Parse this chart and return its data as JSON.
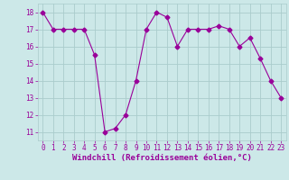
{
  "x": [
    0,
    1,
    2,
    3,
    4,
    5,
    6,
    7,
    8,
    9,
    10,
    11,
    12,
    13,
    14,
    15,
    16,
    17,
    18,
    19,
    20,
    21,
    22,
    23
  ],
  "y": [
    18,
    17,
    17,
    17,
    17,
    15.5,
    11,
    11.2,
    12,
    14,
    17,
    18,
    17.7,
    16,
    17,
    17,
    17,
    17.2,
    17,
    16,
    16.5,
    15.3,
    14,
    13
  ],
  "line_color": "#990099",
  "marker": "D",
  "marker_size": 2.5,
  "bg_color": "#cce8e8",
  "grid_color": "#aacccc",
  "xlabel": "Windchill (Refroidissement éolien,°C)",
  "xlabel_color": "#990099",
  "xlabel_fontsize": 6.5,
  "tick_color": "#990099",
  "tick_fontsize": 5.5,
  "ylim": [
    10.5,
    18.5
  ],
  "xlim": [
    -0.5,
    23.5
  ],
  "yticks": [
    11,
    12,
    13,
    14,
    15,
    16,
    17,
    18
  ],
  "xticks": [
    0,
    1,
    2,
    3,
    4,
    5,
    6,
    7,
    8,
    9,
    10,
    11,
    12,
    13,
    14,
    15,
    16,
    17,
    18,
    19,
    20,
    21,
    22,
    23
  ]
}
